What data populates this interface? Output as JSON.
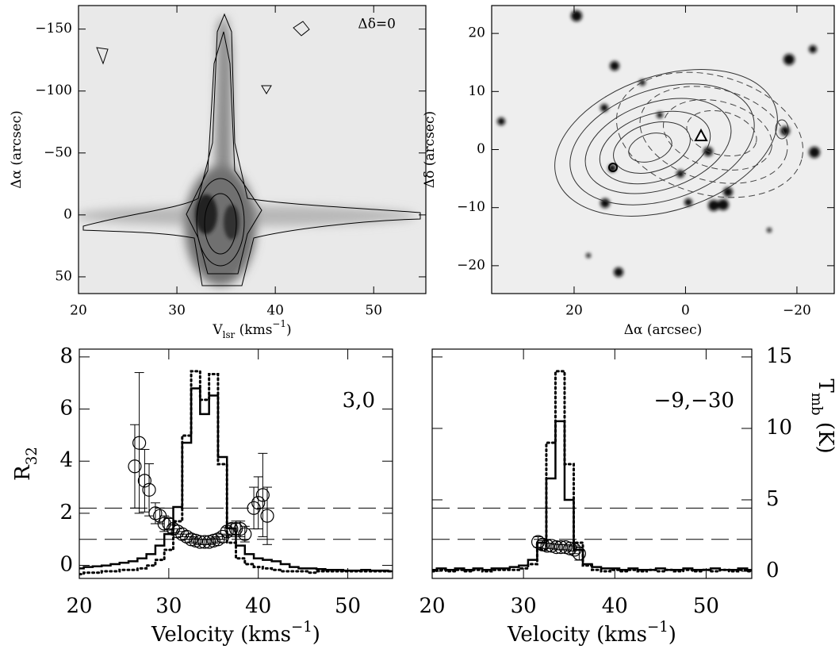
{
  "chart_data": [
    {
      "type": "image",
      "xlabel": [
        {
          "text": "V"
        },
        {
          "text": "lsr",
          "style": "sub"
        },
        {
          "text": " (kms"
        },
        {
          "text": "−1",
          "style": "sup"
        },
        {
          "text": ")"
        }
      ],
      "ylabel": [
        {
          "text": "Δα (arcsec)"
        }
      ],
      "annotation": "Δδ=0",
      "xlim": [
        20,
        55.3
      ],
      "xticks": [
        20,
        30,
        40,
        50
      ],
      "ylim": [
        63.5,
        -169
      ],
      "yticks": [
        {
          "value": -150,
          "label": "−150"
        },
        {
          "value": -100,
          "label": "−100"
        },
        {
          "value": -50,
          "label": "−50"
        },
        0,
        50
      ]
    },
    {
      "type": "image",
      "xlabel": [
        {
          "text": "Δα (arcsec)"
        }
      ],
      "ylabel": [
        {
          "text": "Δδ (arcsec)"
        }
      ],
      "xlim": [
        34.8,
        -26.7
      ],
      "xticks": [
        20,
        0,
        {
          "value": -20,
          "label": "−20"
        }
      ],
      "ylim": [
        -24.8,
        24.8
      ],
      "yticks": [
        {
          "value": -20,
          "label": "−20"
        },
        {
          "value": -10,
          "label": "−10"
        },
        0,
        10,
        20
      ]
    },
    {
      "type": "spectrum",
      "xlabel": [
        {
          "text": "Velocity (kms"
        },
        {
          "text": "−1",
          "style": "sup"
        },
        {
          "text": ")"
        }
      ],
      "ylabel": [
        {
          "text": "R"
        },
        {
          "text": "32",
          "style": "sub"
        }
      ],
      "annotation": "3,0",
      "xlim": [
        20,
        55
      ],
      "xticks": [
        20,
        30,
        40,
        50
      ],
      "ylim": [
        -0.5,
        8.3
      ],
      "yticks": [
        0,
        2,
        4,
        6,
        8
      ],
      "y2lim": [
        -0.5,
        15.55
      ],
      "hlines": [
        1,
        2.2
      ],
      "series": [
        {
          "style": "step",
          "dash": "solid",
          "color": "#000",
          "axis": "y2",
          "x": [
            20,
            21,
            22,
            23,
            24,
            25,
            26,
            27,
            28,
            29,
            30,
            31,
            32,
            33,
            34,
            35,
            36,
            37,
            38,
            39,
            40,
            41,
            42,
            43,
            44,
            45,
            46,
            47,
            48,
            49,
            50,
            51,
            52,
            53,
            54,
            55
          ],
          "values": [
            0.2,
            0.3,
            0.35,
            0.4,
            0.5,
            0.6,
            0.7,
            0.9,
            1.2,
            1.8,
            2.6,
            4.5,
            9,
            12.8,
            11,
            12.3,
            8,
            3,
            1.8,
            1.2,
            0.9,
            0.8,
            0.7,
            0.5,
            0.3,
            0.2,
            0.2,
            0.15,
            0.1,
            0.1,
            0.05,
            0.05,
            0.1,
            0.05,
            0.05,
            0
          ]
        },
        {
          "style": "step",
          "dash": "dotted",
          "color": "#000",
          "axis": "y2",
          "x": [
            20,
            21,
            22,
            23,
            24,
            25,
            26,
            27,
            28,
            29,
            30,
            31,
            32,
            33,
            34,
            35,
            36,
            37,
            38,
            39,
            40,
            41,
            42,
            43,
            44,
            45,
            46,
            47,
            48,
            49,
            50,
            51,
            52,
            53,
            54,
            55
          ],
          "values": [
            -0.2,
            -0.1,
            -0.1,
            0,
            0,
            0.1,
            0.1,
            0.2,
            0.4,
            0.8,
            1.5,
            3.5,
            9.5,
            14,
            12,
            13.8,
            7.5,
            2,
            0.9,
            0.5,
            0.3,
            0.2,
            0.1,
            0,
            0,
            0,
            -0.1,
            0,
            0,
            0,
            0,
            0,
            0,
            0,
            0,
            0
          ]
        },
        {
          "style": "points",
          "color": "#000",
          "axis": "y",
          "x": [
            26.2,
            26.7,
            27.3,
            27.8,
            28.5,
            29,
            29.5,
            30,
            30.5,
            31,
            31.5,
            32,
            32.5,
            33,
            33.5,
            34,
            34.5,
            35,
            35.5,
            36,
            36.5,
            37,
            37.5,
            38,
            38.5,
            39.5,
            40,
            40.5,
            41
          ],
          "values": [
            3.8,
            4.7,
            3.25,
            2.9,
            2.0,
            1.9,
            1.6,
            1.6,
            1.4,
            1.3,
            1.2,
            1.1,
            1.0,
            0.95,
            0.9,
            0.9,
            0.9,
            0.95,
            1.0,
            1.1,
            1.3,
            1.4,
            1.4,
            1.4,
            1.2,
            2.2,
            2.4,
            2.7,
            1.9
          ],
          "errors": [
            1.6,
            2.7,
            1.2,
            1.0,
            0.4,
            0.3,
            0.3,
            0.2,
            0.15,
            0.1,
            0.1,
            0.1,
            0.1,
            0.1,
            0.1,
            0.1,
            0.1,
            0.1,
            0.1,
            0.1,
            0.15,
            0.2,
            0.3,
            0.3,
            0.3,
            0.8,
            1.0,
            1.6,
            1.1
          ]
        }
      ]
    },
    {
      "type": "spectrum",
      "xlabel": [
        {
          "text": "Velocity (kms"
        },
        {
          "text": "−1",
          "style": "sup"
        },
        {
          "text": ")"
        }
      ],
      "y2label": [
        {
          "text": "T"
        },
        {
          "text": "mb",
          "style": "sub"
        },
        {
          "text": " (K)"
        }
      ],
      "annotation": "−9,−30",
      "xlim": [
        20,
        55
      ],
      "xticks": [
        20,
        30,
        40,
        50
      ],
      "ylim": [
        -0.5,
        8.3
      ],
      "y2lim": [
        -0.5,
        15.55
      ],
      "y2ticks": [
        0,
        5,
        10,
        15
      ],
      "hlines": [
        1,
        2.2
      ],
      "series": [
        {
          "style": "step",
          "dash": "solid",
          "color": "#000",
          "axis": "y2",
          "x": [
            20,
            21,
            22,
            23,
            24,
            25,
            26,
            27,
            28,
            29,
            30,
            31,
            32,
            33,
            34,
            35,
            36,
            37,
            38,
            39,
            40,
            41,
            42,
            43,
            44,
            45,
            46,
            47,
            48,
            49,
            50,
            51,
            52,
            53,
            54,
            55
          ],
          "values": [
            0.1,
            0.2,
            0.1,
            0.2,
            0.1,
            0.2,
            0.1,
            0.2,
            0.2,
            0.3,
            0.4,
            0.8,
            2,
            6.5,
            10.5,
            5,
            1.5,
            0.5,
            0.3,
            0.2,
            0.2,
            0.1,
            0.2,
            0.1,
            0.1,
            0.2,
            0.1,
            0.1,
            0.2,
            0.1,
            0.1,
            0.2,
            0.1,
            0.1,
            0.2,
            0.1
          ]
        },
        {
          "style": "step",
          "dash": "dotted",
          "color": "#000",
          "axis": "y2",
          "x": [
            20,
            21,
            22,
            23,
            24,
            25,
            26,
            27,
            28,
            29,
            30,
            31,
            32,
            33,
            34,
            35,
            36,
            37,
            38,
            39,
            40,
            41,
            42,
            43,
            44,
            45,
            46,
            47,
            48,
            49,
            50,
            51,
            52,
            53,
            54,
            55
          ],
          "values": [
            0,
            0.1,
            0,
            0.1,
            0,
            0.1,
            0,
            0.1,
            0.1,
            0.1,
            0.2,
            0.5,
            1.5,
            9,
            14,
            7.5,
            2,
            0.4,
            0.1,
            0,
            0.1,
            0,
            0.1,
            0,
            0.1,
            0,
            0.1,
            0,
            0.1,
            0,
            0.1,
            0,
            0.1,
            0,
            0.1,
            0
          ]
        },
        {
          "style": "points",
          "color": "#000",
          "axis": "y",
          "x": [
            31.6,
            32.1,
            32.6,
            33.1,
            33.6,
            34.1,
            34.6,
            35.1,
            35.6,
            36.1
          ],
          "values": [
            0.9,
            0.8,
            0.75,
            0.75,
            0.7,
            0.7,
            0.7,
            0.65,
            0.6,
            0.45
          ],
          "errors": [
            0.2,
            0.15,
            0.1,
            0.1,
            0.1,
            0.1,
            0.1,
            0.1,
            0.15,
            0.25
          ]
        }
      ]
    }
  ]
}
